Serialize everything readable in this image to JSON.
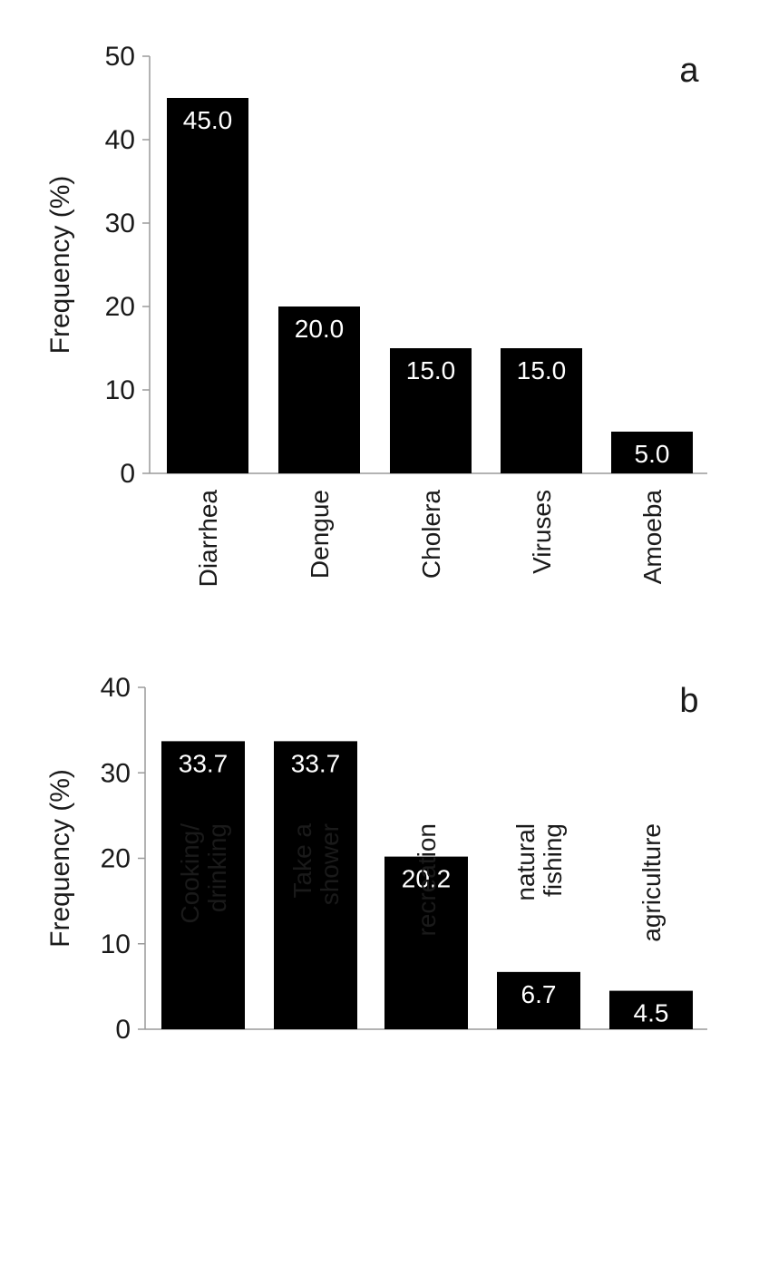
{
  "chart_data": [
    {
      "type": "bar",
      "panel_label": "a",
      "ylabel": "Frequency (%)",
      "ylim": [
        0,
        50
      ],
      "yticks": [
        0,
        10,
        20,
        30,
        40,
        50
      ],
      "categories": [
        [
          "Diarrhea"
        ],
        [
          "Dengue"
        ],
        [
          "Cholera"
        ],
        [
          "Viruses"
        ],
        [
          "Amoeba"
        ]
      ],
      "values": [
        45.0,
        20.0,
        15.0,
        15.0,
        5.0
      ],
      "value_labels": [
        "45.0",
        "20.0",
        "15.0",
        "15.0",
        "5.0"
      ],
      "bar_color": "#000000",
      "grid": false
    },
    {
      "type": "bar",
      "panel_label": "b",
      "ylabel": "Frequency (%)",
      "ylim": [
        0,
        40
      ],
      "yticks": [
        0,
        10,
        20,
        30,
        40
      ],
      "categories": [
        [
          "Cooking/",
          "drinking"
        ],
        [
          "Take a",
          "shower"
        ],
        [
          "recreation"
        ],
        [
          "natural",
          "fishing"
        ],
        [
          "agriculture"
        ]
      ],
      "values": [
        33.7,
        33.7,
        20.2,
        6.7,
        4.5
      ],
      "value_labels": [
        "33.7",
        "33.7",
        "20.2",
        "6.7",
        "4.5"
      ],
      "bar_color": "#000000",
      "grid": false
    }
  ]
}
